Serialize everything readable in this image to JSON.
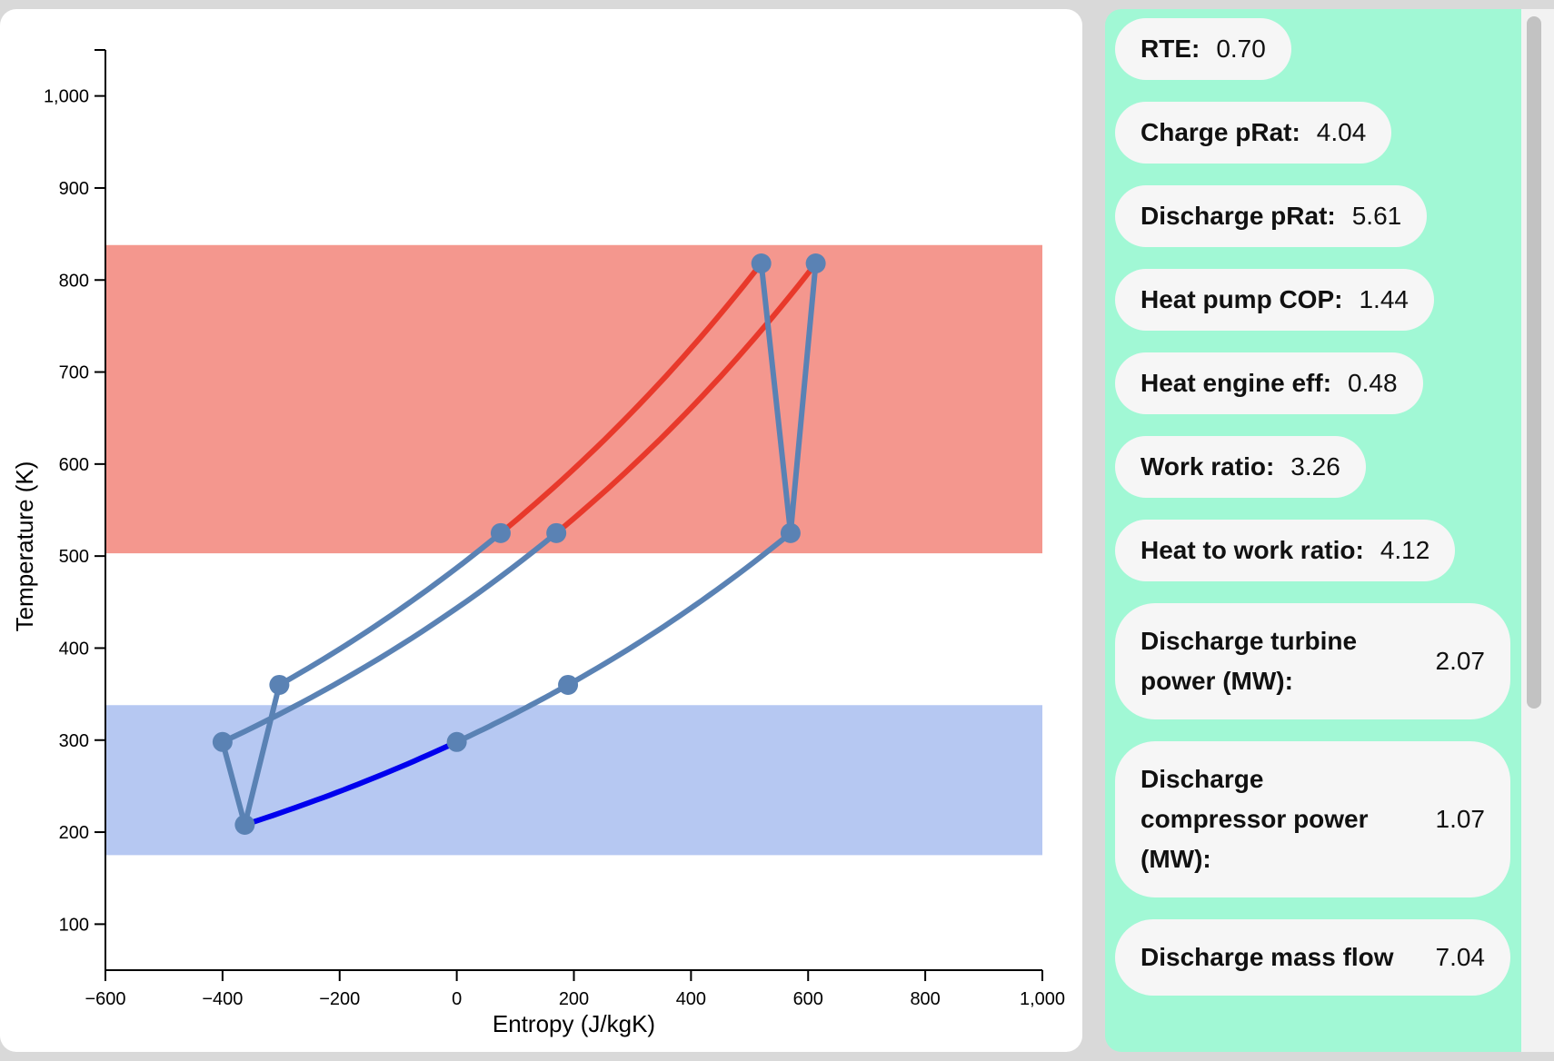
{
  "chart_data": {
    "type": "scatter",
    "xlabel": "Entropy (J/kgK)",
    "ylabel": "Temperature (K)",
    "xlim": [
      -600,
      1000
    ],
    "ylim": [
      50,
      1050
    ],
    "x_ticks": [
      -600,
      -400,
      -200,
      0,
      200,
      400,
      600,
      800,
      1000
    ],
    "x_tick_labels": [
      "−600",
      "−400",
      "−200",
      "0",
      "200",
      "400",
      "600",
      "800",
      "1,000"
    ],
    "y_ticks": [
      100,
      200,
      300,
      400,
      500,
      600,
      700,
      800,
      900,
      1000
    ],
    "y_tick_labels": [
      "100",
      "200",
      "300",
      "400",
      "500",
      "600",
      "700",
      "800",
      "900",
      "1,000"
    ],
    "bands": [
      {
        "name": "hot reservoir",
        "ymin": 503,
        "ymax": 838,
        "color": "#f4978e"
      },
      {
        "name": "cold reservoir",
        "ymin": 175,
        "ymax": 338,
        "color": "#b6c8f2"
      }
    ],
    "series": [
      {
        "color": "#5a82b4",
        "curve": [
          [
            -303,
            360
          ],
          [
            75,
            525
          ]
        ]
      },
      {
        "color": "#e8392b",
        "curve": [
          [
            75,
            525
          ],
          [
            520,
            818
          ]
        ]
      },
      {
        "color": "#5a82b4",
        "curve": [
          [
            -400,
            298
          ],
          [
            170,
            525
          ]
        ]
      },
      {
        "color": "#e8392b",
        "curve": [
          [
            170,
            525
          ],
          [
            613,
            818
          ]
        ]
      },
      {
        "color": "#0000ee",
        "curve": [
          [
            -362,
            208
          ],
          [
            0,
            298
          ]
        ]
      },
      {
        "color": "#5a82b4",
        "curve": [
          [
            0,
            298
          ],
          [
            190,
            360
          ]
        ]
      },
      {
        "color": "#5a82b4",
        "curve": [
          [
            190,
            360
          ],
          [
            570,
            525
          ]
        ]
      },
      {
        "color": "#5a82b4",
        "straight": [
          [
            -303,
            360
          ],
          [
            -362,
            208
          ]
        ]
      },
      {
        "color": "#5a82b4",
        "straight": [
          [
            -400,
            298
          ],
          [
            -362,
            208
          ]
        ]
      },
      {
        "color": "#5a82b4",
        "straight": [
          [
            520,
            818
          ],
          [
            570,
            525
          ]
        ]
      },
      {
        "color": "#5a82b4",
        "straight": [
          [
            613,
            818
          ],
          [
            570,
            525
          ]
        ]
      }
    ],
    "points": [
      [
        -303,
        360
      ],
      [
        75,
        525
      ],
      [
        520,
        818
      ],
      [
        170,
        525
      ],
      [
        613,
        818
      ],
      [
        -400,
        298
      ],
      [
        -362,
        208
      ],
      [
        0,
        298
      ],
      [
        190,
        360
      ],
      [
        570,
        525
      ]
    ],
    "point_color": "#5a82b4"
  },
  "metrics": [
    {
      "label": "RTE:",
      "value": "0.70"
    },
    {
      "label": "Charge pRat:",
      "value": "4.04"
    },
    {
      "label": "Discharge pRat:",
      "value": "5.61"
    },
    {
      "label": "Heat pump COP:",
      "value": "1.44"
    },
    {
      "label": "Heat engine eff:",
      "value": "0.48"
    },
    {
      "label": "Work ratio:",
      "value": "3.26"
    },
    {
      "label": "Heat to work ratio:",
      "value": "4.12"
    },
    {
      "label": "Discharge turbine power (MW):",
      "value": "2.07"
    },
    {
      "label": "Discharge compressor power (MW):",
      "value": "1.07"
    },
    {
      "label": "Discharge mass flow",
      "value": "7.04"
    }
  ]
}
